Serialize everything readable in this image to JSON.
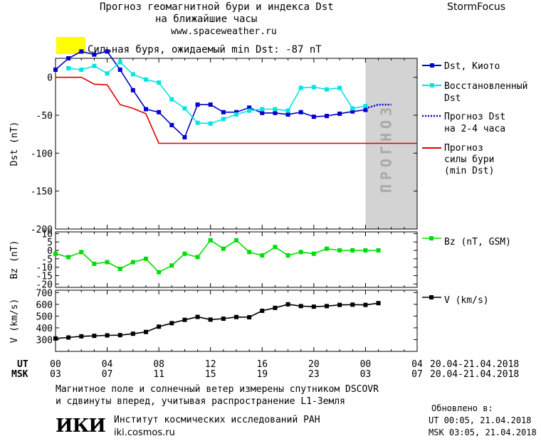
{
  "header": {
    "title_line1": "Прогноз геомагнитной бури и индекса Dst",
    "title_line2": "на ближайшие часы",
    "url": "www.spaceweather.ru",
    "brand": "StormFocus"
  },
  "status": {
    "text": "Сильная буря, ожидаемый min Dst: -87 nT",
    "color": "#ffff00"
  },
  "chart_data": [
    {
      "type": "line",
      "panel": "dst",
      "ylabel": "Dst (nT)",
      "ylim": [
        -200,
        25
      ],
      "yticks": [
        0,
        -50,
        -100,
        -150,
        -200
      ],
      "x_ticks_hours": [
        0,
        4,
        8,
        12,
        16,
        20,
        24,
        28
      ],
      "forecast_band_label": "ПРОГНОЗ",
      "forecast_band_hours": [
        24,
        28
      ],
      "series": [
        {
          "name": "Dst, Киото",
          "color": "#0000cc",
          "marker": "square",
          "x": [
            0,
            1,
            2,
            3,
            4,
            5,
            6,
            7,
            8,
            9,
            10,
            11,
            12,
            13,
            14,
            15,
            16,
            17,
            18,
            19,
            20,
            21,
            22,
            23,
            24
          ],
          "y": [
            10,
            25,
            34,
            30,
            34,
            10,
            -17,
            -42,
            -46,
            -63,
            -79,
            -36,
            -36,
            -46,
            -46,
            -40,
            -47,
            -47,
            -49,
            -46,
            -52,
            -51,
            -48,
            -45,
            -43
          ]
        },
        {
          "name": "Восстановленный Dst",
          "color": "#00e5e5",
          "marker": "square",
          "x": [
            1,
            2,
            3,
            4,
            5,
            6,
            7,
            8,
            9,
            10,
            11,
            12,
            13,
            14,
            15,
            16,
            17,
            18,
            19,
            20,
            21,
            22,
            23,
            24
          ],
          "y": [
            12,
            10,
            15,
            5,
            20,
            4,
            -3,
            -7,
            -29,
            -41,
            -60,
            -61,
            -55,
            -49,
            -44,
            -42,
            -42,
            -44,
            -14,
            -13,
            -16,
            -14,
            -41,
            -38
          ]
        },
        {
          "name": "Прогноз Dst на 2-4 часа",
          "color": "#0000cc",
          "style": "dotted",
          "x": [
            24,
            25,
            26
          ],
          "y": [
            -41,
            -36,
            -36
          ]
        },
        {
          "name": "Прогноз силы бури (min Dst)",
          "color": "#dd0000",
          "x": [
            0,
            2,
            3,
            4,
            5,
            6,
            7,
            8,
            28
          ],
          "y": [
            0,
            0,
            -9,
            -10,
            -36,
            -41,
            -48,
            -87,
            -87
          ]
        }
      ]
    },
    {
      "type": "line",
      "panel": "bz",
      "ylabel": "Bz (nT)",
      "ylim": [
        -22,
        11
      ],
      "yticks": [
        10,
        5,
        0,
        -5,
        -10,
        -15,
        -20
      ],
      "series": [
        {
          "name": "Bz (nT, GSM)",
          "color": "#00dd00",
          "marker": "square",
          "x": [
            0,
            1,
            2,
            3,
            4,
            5,
            6,
            7,
            8,
            9,
            10,
            11,
            12,
            13,
            14,
            15,
            16,
            17,
            18,
            19,
            20,
            21,
            22,
            23,
            24,
            25
          ],
          "y": [
            -2,
            -4,
            -1,
            -8,
            -7,
            -11,
            -7,
            -5,
            -13,
            -9,
            -2,
            -4,
            6,
            1,
            6,
            -1,
            -3,
            2,
            -3,
            -1,
            -2,
            1,
            0,
            0,
            0,
            0
          ]
        }
      ]
    },
    {
      "type": "line",
      "panel": "v",
      "ylabel": "V (km/s)",
      "ylim": [
        200,
        720
      ],
      "yticks": [
        700,
        600,
        500,
        400,
        300
      ],
      "series": [
        {
          "name": "V (km/s)",
          "color": "#000000",
          "marker": "square",
          "x": [
            0,
            1,
            2,
            3,
            4,
            5,
            6,
            7,
            8,
            9,
            10,
            11,
            12,
            13,
            14,
            15,
            16,
            17,
            18,
            19,
            20,
            21,
            22,
            23,
            24,
            25
          ],
          "y": [
            310,
            318,
            328,
            332,
            336,
            338,
            350,
            365,
            410,
            440,
            468,
            493,
            470,
            478,
            492,
            490,
            545,
            570,
            600,
            585,
            580,
            585,
            595,
            597,
            595,
            610
          ]
        }
      ]
    }
  ],
  "axis": {
    "ut_label": "UT",
    "msk_label": "MSK",
    "ut_ticks": [
      "00",
      "04",
      "08",
      "12",
      "16",
      "20",
      "00",
      "04"
    ],
    "msk_ticks": [
      "03",
      "07",
      "11",
      "15",
      "19",
      "23",
      "03",
      "07"
    ],
    "ut_range": "20.04-21.04.2018",
    "msk_range": "20.04-21.04.2018"
  },
  "legend": {
    "dst_kyoto": "Dst, Киото",
    "dst_restored_1": "Восстановленный",
    "dst_restored_2": "Dst",
    "dst_forecast_1": "Прогноз Dst",
    "dst_forecast_2": "на 2-4 часа",
    "storm_1": "Прогноз",
    "storm_2": "силы бури",
    "storm_3": "(min Dst)",
    "bz": "Bz (nT, GSM)",
    "v": "V (km/s)"
  },
  "footer": {
    "line1": "Магнитное поле и солнечный ветер измерены спутником DSCOVR",
    "line2": "и сдвинуты вперед, учитывая распространение L1-Земля",
    "institute": "Институт космических исследований РАН",
    "site": "iki.cosmos.ru",
    "logo_text": "ИКИ",
    "updated_label": "Обновлено в:",
    "updated_ut": "UT  00:05, 21.04.2018",
    "updated_msk": "MSK 03:05, 21.04.2018"
  }
}
